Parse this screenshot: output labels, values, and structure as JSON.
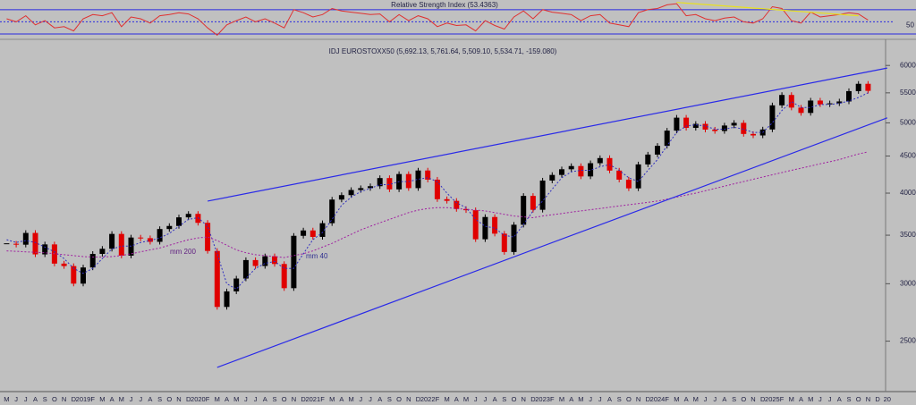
{
  "chart_data": [
    {
      "type": "line",
      "title": "Relative Strength Index (53.4363)",
      "ylim": [
        27,
        86
      ],
      "yticks": [
        50
      ],
      "levels": [
        30,
        70
      ],
      "level_color": "#2a2ae0",
      "series": [
        {
          "color": "#e03030",
          "style": "line",
          "values": [
            55,
            50,
            60,
            45,
            52,
            40,
            42,
            35,
            55,
            62,
            60,
            65,
            42,
            58,
            55,
            48,
            60,
            62,
            65,
            63,
            55,
            40,
            28,
            45,
            52,
            58,
            50,
            55,
            48,
            40,
            70,
            65,
            58,
            62,
            72,
            68,
            66,
            64,
            62,
            63,
            50,
            62,
            52,
            60,
            55,
            42,
            48,
            44,
            45,
            35,
            52,
            44,
            38,
            58,
            68,
            55,
            70,
            66,
            64,
            62,
            52,
            60,
            62,
            48,
            45,
            42,
            65,
            70,
            72,
            78,
            80,
            60,
            62,
            55,
            52,
            56,
            58,
            50,
            48,
            55,
            75,
            72,
            52,
            48,
            66,
            58,
            60,
            62,
            65,
            63,
            53,
            null,
            null
          ]
        },
        {
          "color": "#e8e020",
          "style": "trendline",
          "values": [
            null,
            null,
            null,
            null,
            null,
            null,
            null,
            null,
            null,
            null,
            null,
            null,
            null,
            null,
            null,
            null,
            null,
            null,
            null,
            null,
            null,
            null,
            null,
            null,
            null,
            null,
            null,
            null,
            null,
            null,
            null,
            null,
            null,
            null,
            null,
            null,
            null,
            null,
            null,
            null,
            null,
            null,
            null,
            null,
            null,
            null,
            null,
            null,
            null,
            null,
            null,
            null,
            null,
            null,
            null,
            null,
            null,
            null,
            null,
            null,
            null,
            null,
            null,
            null,
            null,
            null,
            null,
            null,
            null,
            null,
            82,
            null,
            null,
            null,
            null,
            null,
            null,
            null,
            null,
            null,
            null,
            null,
            null,
            null,
            null,
            null,
            null,
            null,
            null,
            60,
            null,
            null,
            null
          ]
        }
      ]
    },
    {
      "type": "candlestick",
      "title": "IDJ EUROSTOXX50 (5,692.13, 5,761.64, 5,509.10, 5,534.71, -159.080)",
      "log_scale": true,
      "ylim": [
        2130,
        6500
      ],
      "yticks": [
        2500,
        3000,
        3500,
        4000,
        4500,
        5000,
        5500,
        6000
      ],
      "categories": [
        "M",
        "J",
        "J",
        "A",
        "S",
        "O",
        "N",
        "D",
        "2019",
        "F",
        "M",
        "A",
        "M",
        "J",
        "J",
        "A",
        "S",
        "O",
        "N",
        "D",
        "2020",
        "F",
        "M",
        "A",
        "M",
        "J",
        "J",
        "A",
        "S",
        "O",
        "N",
        "D",
        "2021",
        "F",
        "M",
        "A",
        "M",
        "J",
        "J",
        "A",
        "S",
        "O",
        "N",
        "D",
        "2022",
        "F",
        "M",
        "A",
        "M",
        "J",
        "J",
        "A",
        "S",
        "O",
        "N",
        "D",
        "2023",
        "F",
        "M",
        "A",
        "M",
        "J",
        "J",
        "A",
        "S",
        "O",
        "N",
        "D",
        "2024",
        "F",
        "M",
        "A",
        "M",
        "J",
        "J",
        "A",
        "S",
        "O",
        "N",
        "D",
        "2025",
        "F",
        "M",
        "A",
        "M",
        "J",
        "J",
        "A",
        "S",
        "O",
        "N",
        "D",
        "20"
      ],
      "series": [
        {
          "style": "candles",
          "up_color": "#000000",
          "down_color": "#e00000",
          "values": [
            3406,
            3396,
            3525,
            3293,
            3399,
            3198,
            3173,
            3001,
            3159,
            3298,
            3352,
            3514,
            3280,
            3474,
            3467,
            3427,
            3569,
            3604,
            3704,
            3745,
            3640,
            3329,
            2787,
            2928,
            3050,
            3234,
            3174,
            3273,
            3194,
            2958,
            3493,
            3553,
            3481,
            3636,
            3919,
            3975,
            4040,
            4064,
            4089,
            4196,
            4048,
            4250,
            4064,
            4298,
            4175,
            3924,
            3903,
            3803,
            3789,
            3455,
            3708,
            3517,
            3318,
            3618,
            3965,
            3794,
            4163,
            4238,
            4315,
            4359,
            4218,
            4399,
            4471,
            4297,
            4175,
            4061,
            4382,
            4521,
            4648,
            4878,
            5083,
            4921,
            4984,
            4894,
            4872,
            4958,
            5000,
            4827,
            4804,
            4896,
            5286,
            5463,
            5248,
            5160,
            5367,
            5303,
            5320,
            5352,
            5530,
            5660,
            5535,
            null,
            null
          ]
        },
        {
          "name": "mm 40",
          "style": "dotted",
          "color": "#3030c0",
          "values": [
            3450,
            3420,
            3440,
            3420,
            3370,
            3320,
            3250,
            3150,
            3100,
            3150,
            3250,
            3350,
            3380,
            3380,
            3420,
            3440,
            3470,
            3520,
            3600,
            3680,
            3700,
            3600,
            3300,
            3000,
            2950,
            3050,
            3150,
            3200,
            3220,
            3150,
            3150,
            3300,
            3450,
            3530,
            3680,
            3850,
            3950,
            4020,
            4060,
            4110,
            4110,
            4150,
            4150,
            4180,
            4200,
            4150,
            4000,
            3880,
            3820,
            3680,
            3600,
            3580,
            3500,
            3480,
            3620,
            3780,
            3900,
            4050,
            4200,
            4280,
            4300,
            4300,
            4350,
            4380,
            4300,
            4200,
            4150,
            4300,
            4450,
            4650,
            4850,
            4950,
            4970,
            4950,
            4900,
            4900,
            4930,
            4900,
            4850,
            4850,
            5000,
            5200,
            5350,
            5250,
            5250,
            5300,
            5300,
            5320,
            5360,
            5420,
            5500,
            null,
            null
          ]
        },
        {
          "name": "mm 200",
          "style": "dotted",
          "color": "#a020a0",
          "values": [
            3330,
            3325,
            3320,
            3315,
            3310,
            3300,
            3290,
            3280,
            3270,
            3265,
            3265,
            3270,
            3280,
            3300,
            3320,
            3340,
            3360,
            3390,
            3420,
            3450,
            3470,
            3480,
            3440,
            3390,
            3340,
            3310,
            3290,
            3280,
            3270,
            3260,
            3280,
            3300,
            3330,
            3370,
            3410,
            3460,
            3510,
            3560,
            3600,
            3640,
            3680,
            3720,
            3760,
            3790,
            3810,
            3820,
            3820,
            3810,
            3800,
            3790,
            3780,
            3760,
            3740,
            3720,
            3710,
            3700,
            3720,
            3735,
            3750,
            3765,
            3780,
            3795,
            3810,
            3825,
            3840,
            3855,
            3870,
            3885,
            3900,
            3925,
            3950,
            3975,
            4000,
            4030,
            4060,
            4090,
            4120,
            4150,
            4180,
            4210,
            4240,
            4270,
            4300,
            4330,
            4360,
            4390,
            4420,
            4450,
            4490,
            4530,
            4560,
            null,
            null
          ]
        },
        {
          "style": "trendline",
          "color": "#2a2ae8",
          "values": [
            null,
            null,
            null,
            null,
            null,
            null,
            null,
            null,
            null,
            null,
            null,
            null,
            null,
            null,
            null,
            null,
            null,
            null,
            null,
            null,
            null,
            3900,
            null,
            null,
            null,
            null,
            null,
            null,
            null,
            null,
            null,
            null,
            null,
            null,
            null,
            null,
            null,
            null,
            null,
            null,
            null,
            null,
            null,
            null,
            null,
            null,
            null,
            null,
            null,
            null,
            null,
            null,
            null,
            null,
            null,
            null,
            null,
            null,
            null,
            null,
            null,
            null,
            null,
            null,
            null,
            null,
            null,
            null,
            null,
            null,
            null,
            null,
            null,
            null,
            null,
            null,
            null,
            null,
            null,
            null,
            null,
            null,
            null,
            null,
            null,
            null,
            null,
            null,
            null,
            null,
            null,
            null,
            5950
          ]
        },
        {
          "style": "trendline",
          "color": "#2a2ae8",
          "values": [
            null,
            null,
            null,
            null,
            null,
            null,
            null,
            null,
            null,
            null,
            null,
            null,
            null,
            null,
            null,
            null,
            null,
            null,
            null,
            null,
            null,
            null,
            2300,
            null,
            null,
            null,
            null,
            null,
            null,
            null,
            null,
            null,
            null,
            null,
            null,
            null,
            null,
            null,
            null,
            null,
            null,
            null,
            null,
            null,
            null,
            null,
            null,
            null,
            null,
            null,
            null,
            null,
            null,
            null,
            null,
            null,
            null,
            null,
            null,
            null,
            null,
            null,
            null,
            null,
            null,
            null,
            null,
            null,
            null,
            null,
            null,
            null,
            null,
            null,
            null,
            null,
            null,
            null,
            null,
            null,
            null,
            null,
            null,
            null,
            null,
            null,
            null,
            null,
            null,
            null,
            null,
            null,
            5080
          ]
        }
      ]
    }
  ]
}
